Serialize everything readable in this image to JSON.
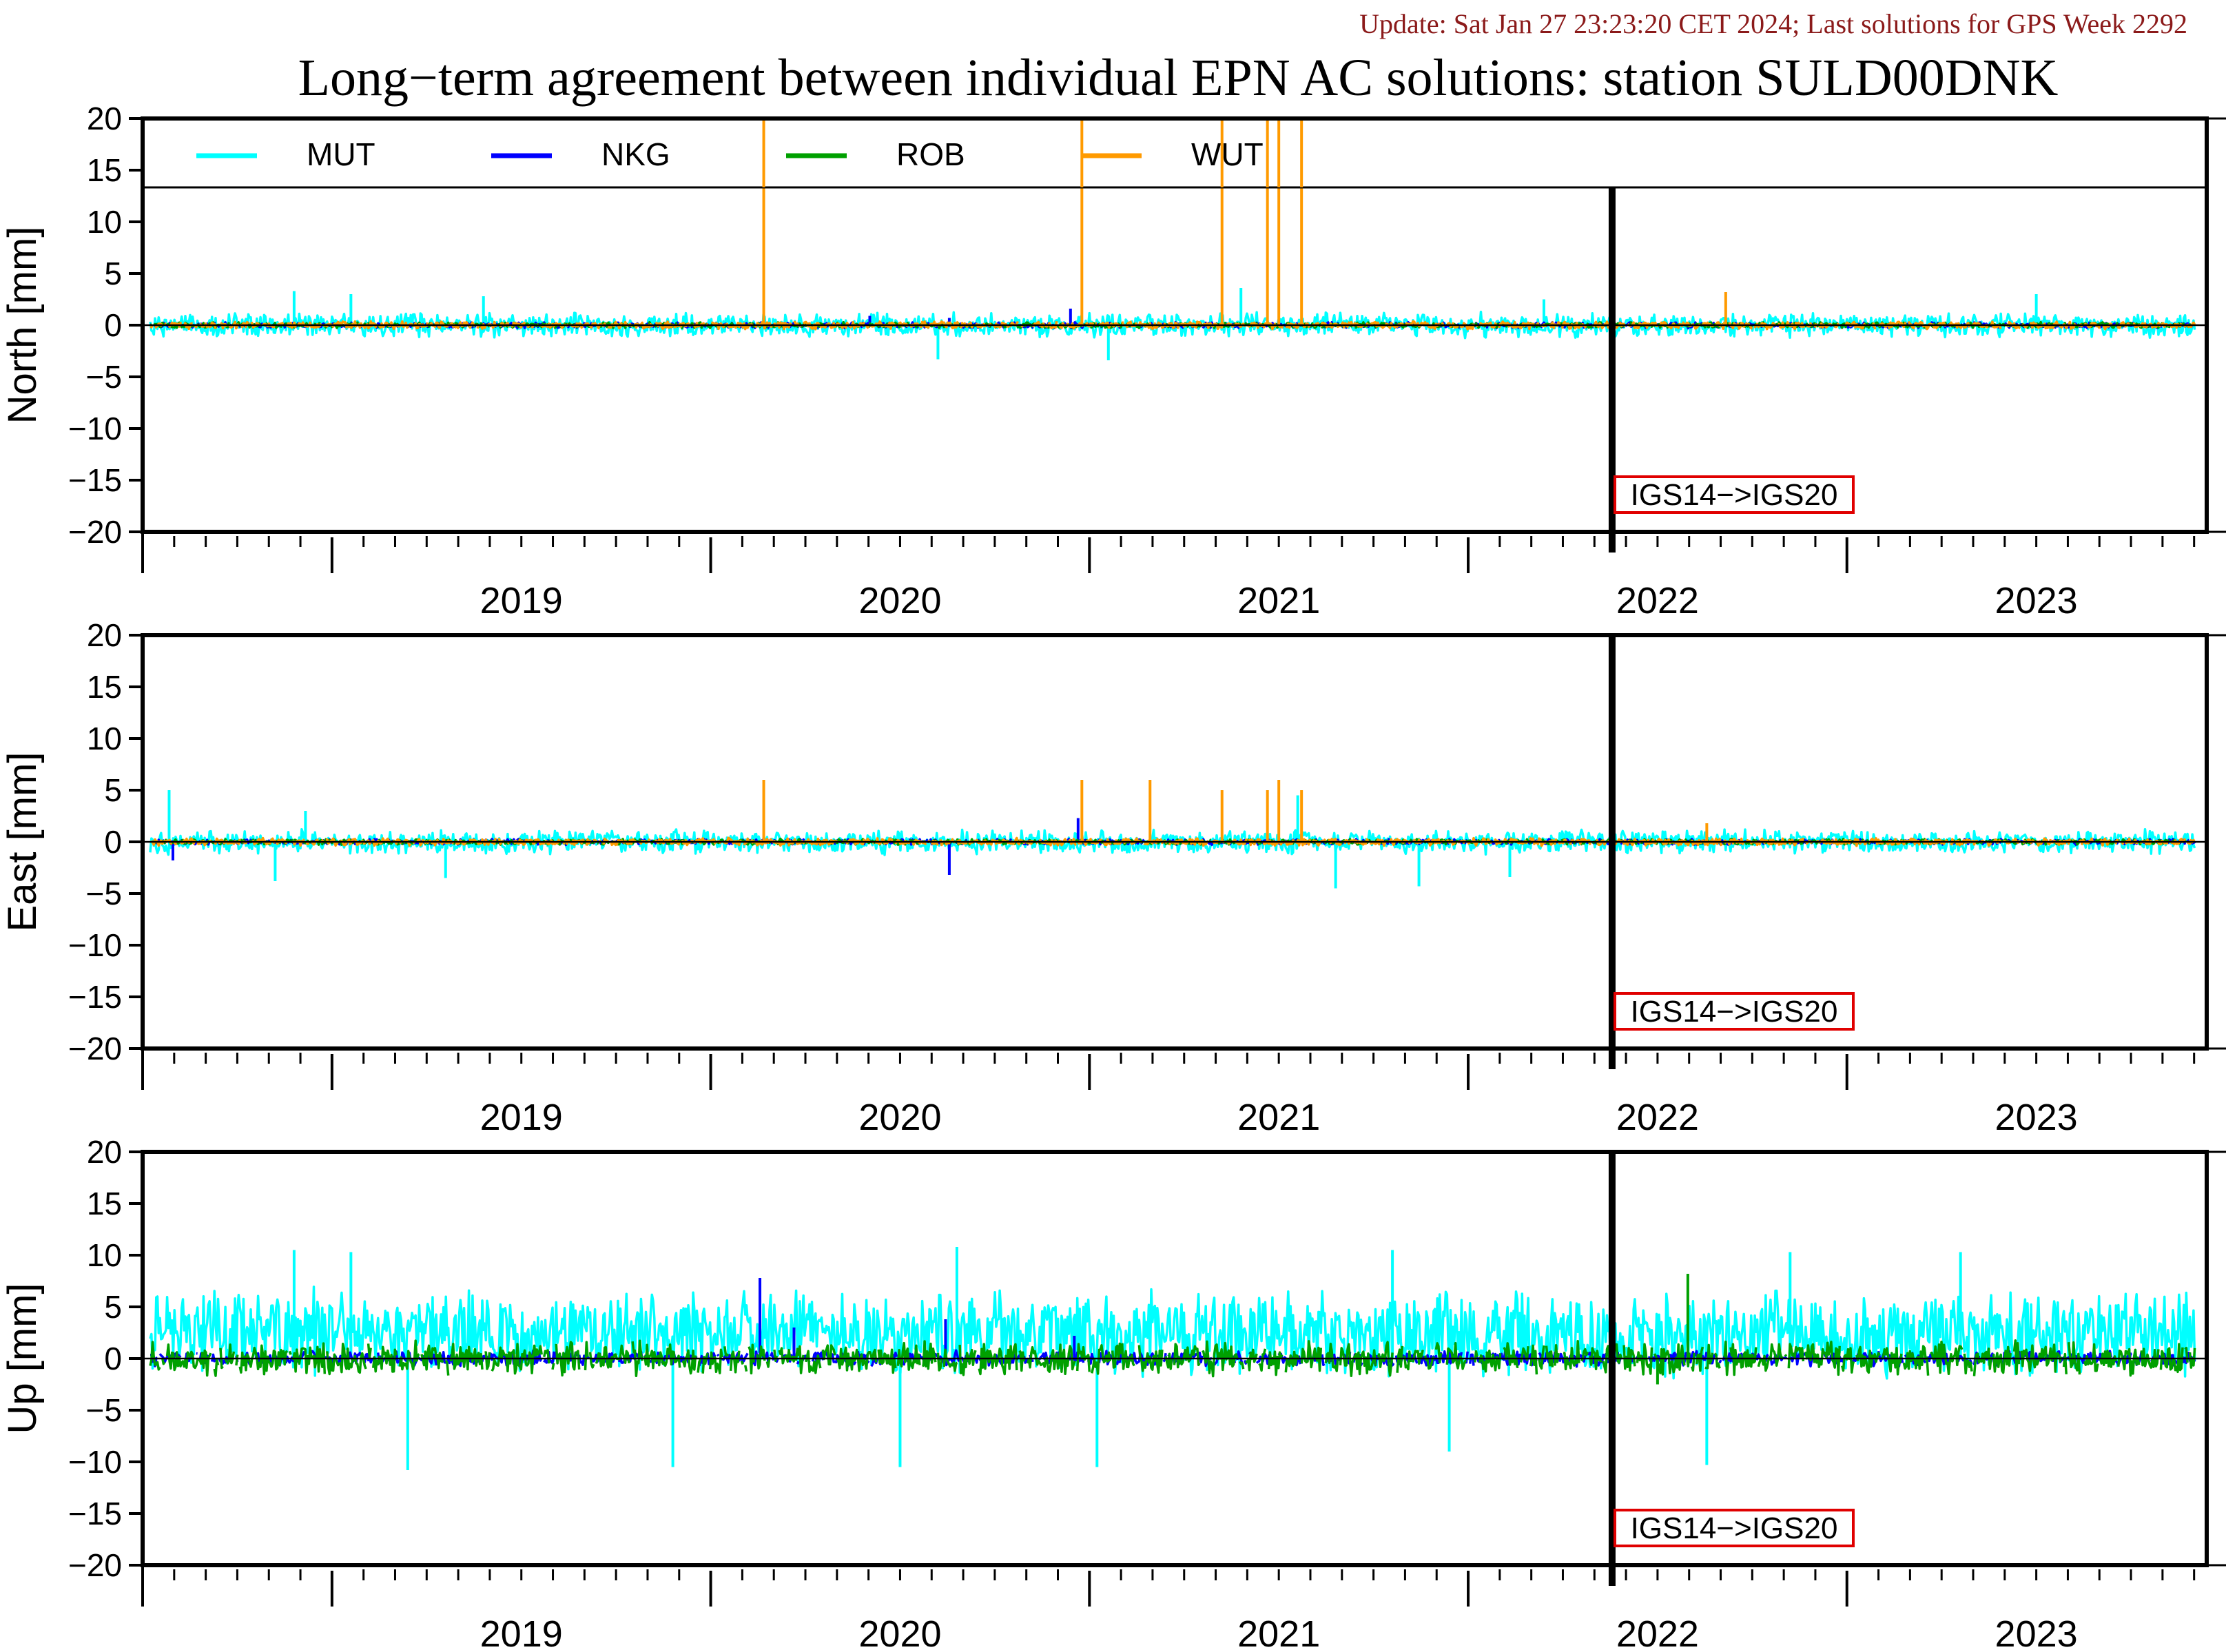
{
  "header": {
    "update_text": "Update: Sat Jan 27 23:23:20 CET 2024; Last solutions for GPS Week 2292",
    "update_color": "#8b1a1a",
    "title": "Long−term agreement between individual EPN AC solutions: station SULD00DNK"
  },
  "legend": [
    {
      "name": "MUT",
      "color": "#00ffff"
    },
    {
      "name": "NKG",
      "color": "#0000ff"
    },
    {
      "name": "ROB",
      "color": "#00a000"
    },
    {
      "name": "WUT",
      "color": "#ff9a00"
    }
  ],
  "frame_change_label": "IGS14−>IGS20",
  "chart_data": [
    {
      "type": "line",
      "ylabel": "North [mm]",
      "ylim": [
        -20,
        20
      ],
      "yticks": [
        20,
        15,
        10,
        5,
        0,
        -5,
        -10,
        -15,
        -20
      ],
      "yticks_labels": [
        "20",
        "15",
        "10",
        "5",
        "0",
        "−5",
        "−10",
        "−15",
        "−20"
      ],
      "xlim": [
        2018.5,
        2023.95
      ],
      "xticks": [
        "2019",
        "2020",
        "2021",
        "2022",
        "2023"
      ],
      "frame_change_epoch": 2022.38,
      "legend_inside": true,
      "series": [
        {
          "name": "MUT",
          "color": "#00ffff",
          "amplitude": 1.3,
          "spikes": [
            [
              2018.9,
              3.3
            ],
            [
              2019.05,
              3.0
            ],
            [
              2019.4,
              2.8
            ],
            [
              2020.6,
              -3.3
            ],
            [
              2021.05,
              -3.4
            ],
            [
              2021.4,
              3.6
            ],
            [
              2022.2,
              2.5
            ],
            [
              2023.5,
              3.0
            ]
          ]
        },
        {
          "name": "NKG",
          "color": "#0000ff",
          "amplitude": 0.3,
          "spikes": [
            [
              2020.42,
              0.9
            ],
            [
              2020.63,
              0.7
            ],
            [
              2020.95,
              1.6
            ]
          ]
        },
        {
          "name": "ROB",
          "color": "#00a000",
          "amplitude": 0.3,
          "spikes": []
        },
        {
          "name": "WUT",
          "color": "#ff9a00",
          "amplitude": 0.4,
          "spikes": [
            [
              2020.14,
              25
            ],
            [
              2020.98,
              25
            ],
            [
              2021.35,
              25
            ],
            [
              2021.47,
              25
            ],
            [
              2021.5,
              25
            ],
            [
              2021.56,
              25
            ],
            [
              2022.68,
              3.2
            ]
          ]
        }
      ]
    },
    {
      "type": "line",
      "ylabel": "East [mm]",
      "ylim": [
        -20,
        20
      ],
      "yticks": [
        20,
        15,
        10,
        5,
        0,
        -5,
        -10,
        -15,
        -20
      ],
      "yticks_labels": [
        "20",
        "15",
        "10",
        "5",
        "0",
        "−5",
        "−10",
        "−15",
        "−20"
      ],
      "xlim": [
        2018.5,
        2023.95
      ],
      "xticks": [
        "2019",
        "2020",
        "2021",
        "2022",
        "2023"
      ],
      "frame_change_epoch": 2022.38,
      "legend_inside": false,
      "series": [
        {
          "name": "MUT",
          "color": "#00ffff",
          "amplitude": 1.3,
          "spikes": [
            [
              2018.57,
              5.0
            ],
            [
              2018.93,
              3.0
            ],
            [
              2018.85,
              -3.8
            ],
            [
              2019.3,
              -3.5
            ],
            [
              2021.55,
              4.5
            ],
            [
              2021.65,
              -4.5
            ],
            [
              2021.87,
              -4.3
            ],
            [
              2022.11,
              -3.4
            ]
          ]
        },
        {
          "name": "NKG",
          "color": "#0000ff",
          "amplitude": 0.3,
          "spikes": [
            [
              2018.58,
              -1.8
            ],
            [
              2020.63,
              -3.2
            ],
            [
              2020.97,
              2.3
            ]
          ]
        },
        {
          "name": "ROB",
          "color": "#00a000",
          "amplitude": 0.3,
          "spikes": []
        },
        {
          "name": "WUT",
          "color": "#ff9a00",
          "amplitude": 0.4,
          "spikes": [
            [
              2020.14,
              6.0
            ],
            [
              2020.98,
              6.0
            ],
            [
              2021.16,
              6.0
            ],
            [
              2021.35,
              5.0
            ],
            [
              2021.47,
              5.0
            ],
            [
              2021.5,
              6.0
            ],
            [
              2021.56,
              5.0
            ],
            [
              2022.63,
              1.8
            ]
          ]
        }
      ]
    },
    {
      "type": "line",
      "ylabel": "Up [mm]",
      "ylim": [
        -20,
        20
      ],
      "yticks": [
        20,
        15,
        10,
        5,
        0,
        -5,
        -10,
        -15,
        -20
      ],
      "yticks_labels": [
        "20",
        "15",
        "10",
        "5",
        "0",
        "−5",
        "−10",
        "−15",
        "−20"
      ],
      "xlim": [
        2018.5,
        2023.95
      ],
      "xticks": [
        "2019",
        "2020",
        "2021",
        "2022",
        "2023"
      ],
      "frame_change_epoch": 2022.38,
      "legend_inside": false,
      "series": [
        {
          "name": "MUT",
          "color": "#00ffff",
          "amplitude": 4.5,
          "spikes": [
            [
              2018.9,
              10.5
            ],
            [
              2019.2,
              -10.8
            ],
            [
              2019.05,
              10.3
            ],
            [
              2019.9,
              -10.5
            ],
            [
              2020.5,
              -10.5
            ],
            [
              2020.65,
              10.8
            ],
            [
              2021.02,
              -10.5
            ],
            [
              2021.8,
              10.5
            ],
            [
              2021.95,
              -9.0
            ],
            [
              2022.63,
              -10.3
            ],
            [
              2022.85,
              10.3
            ],
            [
              2023.3,
              10.3
            ]
          ]
        },
        {
          "name": "NKG",
          "color": "#0000ff",
          "amplitude": 0.8,
          "spikes": [
            [
              2020.13,
              7.8
            ],
            [
              2020.22,
              3.0
            ],
            [
              2020.62,
              3.8
            ],
            [
              2020.96,
              2.2
            ]
          ]
        },
        {
          "name": "ROB",
          "color": "#00a000",
          "amplitude": 1.8,
          "spikes": [
            [
              2022.58,
              8.2
            ],
            [
              2022.5,
              -2.5
            ]
          ]
        },
        {
          "name": "WUT",
          "color": "#ff9a00",
          "amplitude": 0.0,
          "spikes": []
        }
      ]
    }
  ]
}
